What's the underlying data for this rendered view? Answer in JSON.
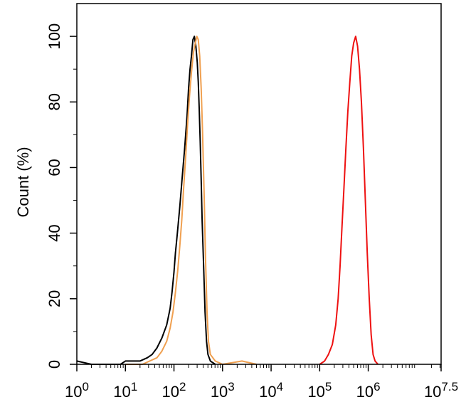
{
  "chart_data": {
    "type": "line",
    "title": "",
    "xlabel": "",
    "ylabel": "Count  (%)",
    "x_scale": "log10",
    "xlim_exponent": [
      0,
      7.5
    ],
    "ylim": [
      0,
      110
    ],
    "x_ticks": [
      {
        "base": "10",
        "exp": "0",
        "value": 0
      },
      {
        "base": "10",
        "exp": "1",
        "value": 1
      },
      {
        "base": "10",
        "exp": "2",
        "value": 2
      },
      {
        "base": "10",
        "exp": "3",
        "value": 3
      },
      {
        "base": "10",
        "exp": "4",
        "value": 4
      },
      {
        "base": "10",
        "exp": "5",
        "value": 5
      },
      {
        "base": "10",
        "exp": "6",
        "value": 6
      },
      {
        "base": "10",
        "exp": "7.5",
        "value": 7.5
      }
    ],
    "y_ticks": [
      "0",
      "20",
      "40",
      "60",
      "80",
      "100"
    ],
    "grid": false,
    "legend": "none",
    "series": [
      {
        "color": "#000000",
        "points": [
          [
            0.0,
            1
          ],
          [
            0.3,
            0
          ],
          [
            0.6,
            0
          ],
          [
            0.9,
            0
          ],
          [
            1.0,
            1
          ],
          [
            1.15,
            1
          ],
          [
            1.3,
            1
          ],
          [
            1.45,
            2
          ],
          [
            1.55,
            3
          ],
          [
            1.65,
            5
          ],
          [
            1.75,
            8
          ],
          [
            1.85,
            12
          ],
          [
            1.92,
            17
          ],
          [
            1.96,
            22
          ],
          [
            2.0,
            28
          ],
          [
            2.03,
            34
          ],
          [
            2.07,
            40
          ],
          [
            2.12,
            48
          ],
          [
            2.17,
            57
          ],
          [
            2.22,
            66
          ],
          [
            2.27,
            76
          ],
          [
            2.3,
            84
          ],
          [
            2.33,
            90
          ],
          [
            2.36,
            94
          ],
          [
            2.39,
            99
          ],
          [
            2.42,
            100
          ],
          [
            2.45,
            97
          ],
          [
            2.48,
            92
          ],
          [
            2.5,
            86
          ],
          [
            2.52,
            78
          ],
          [
            2.54,
            68
          ],
          [
            2.56,
            56
          ],
          [
            2.58,
            44
          ],
          [
            2.61,
            30
          ],
          [
            2.64,
            16
          ],
          [
            2.67,
            7
          ],
          [
            2.7,
            3
          ],
          [
            2.75,
            1
          ],
          [
            2.85,
            0
          ]
        ]
      },
      {
        "color": "#f0a050",
        "points": [
          [
            1.0,
            0
          ],
          [
            1.2,
            0
          ],
          [
            1.35,
            0
          ],
          [
            1.5,
            1
          ],
          [
            1.65,
            2
          ],
          [
            1.75,
            4
          ],
          [
            1.85,
            7
          ],
          [
            1.92,
            11
          ],
          [
            1.98,
            16
          ],
          [
            2.03,
            22
          ],
          [
            2.08,
            29
          ],
          [
            2.12,
            36
          ],
          [
            2.16,
            44
          ],
          [
            2.2,
            54
          ],
          [
            2.24,
            63
          ],
          [
            2.28,
            73
          ],
          [
            2.32,
            82
          ],
          [
            2.36,
            89
          ],
          [
            2.4,
            95
          ],
          [
            2.44,
            98
          ],
          [
            2.47,
            100
          ],
          [
            2.5,
            99
          ],
          [
            2.53,
            94
          ],
          [
            2.56,
            84
          ],
          [
            2.59,
            70
          ],
          [
            2.62,
            52
          ],
          [
            2.65,
            32
          ],
          [
            2.68,
            16
          ],
          [
            2.71,
            7
          ],
          [
            2.75,
            3
          ],
          [
            2.85,
            1
          ],
          [
            3.0,
            0
          ],
          [
            3.4,
            1
          ],
          [
            3.7,
            0
          ]
        ]
      },
      {
        "color": "#ee1111",
        "points": [
          [
            5.0,
            0
          ],
          [
            5.1,
            1
          ],
          [
            5.18,
            3
          ],
          [
            5.26,
            6
          ],
          [
            5.33,
            12
          ],
          [
            5.38,
            20
          ],
          [
            5.42,
            30
          ],
          [
            5.46,
            42
          ],
          [
            5.5,
            54
          ],
          [
            5.54,
            66
          ],
          [
            5.58,
            77
          ],
          [
            5.62,
            86
          ],
          [
            5.66,
            94
          ],
          [
            5.7,
            98
          ],
          [
            5.74,
            100
          ],
          [
            5.78,
            97
          ],
          [
            5.82,
            90
          ],
          [
            5.86,
            80
          ],
          [
            5.9,
            66
          ],
          [
            5.94,
            50
          ],
          [
            5.98,
            34
          ],
          [
            6.02,
            20
          ],
          [
            6.06,
            9
          ],
          [
            6.1,
            3
          ],
          [
            6.14,
            1
          ],
          [
            6.2,
            0
          ]
        ]
      }
    ]
  }
}
